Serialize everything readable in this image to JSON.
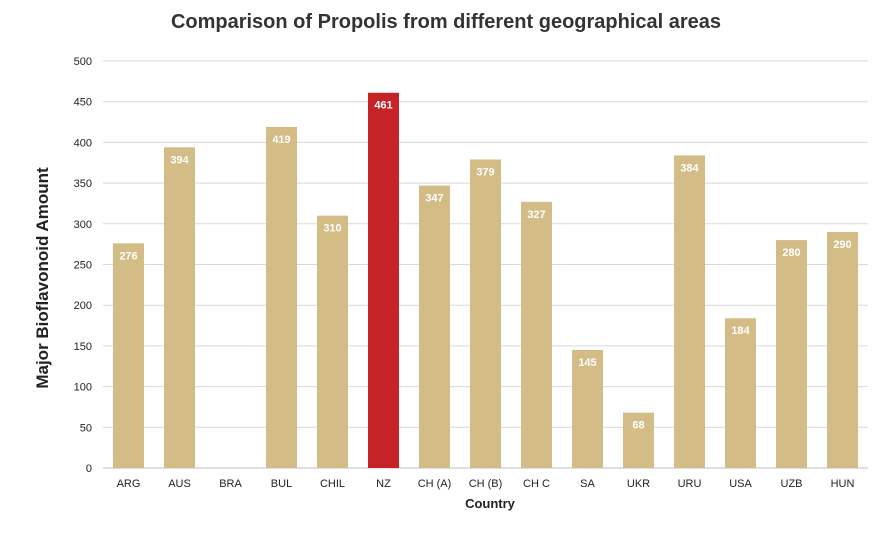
{
  "chart_data": {
    "type": "bar",
    "title": "Comparison of Propolis from different geographical areas",
    "xlabel": "Country",
    "ylabel": "Major Bioflavonoid Amount",
    "ylim": [
      0,
      500
    ],
    "yticks": [
      0,
      50,
      100,
      150,
      200,
      250,
      300,
      350,
      400,
      450,
      500
    ],
    "grid": true,
    "legend": "none",
    "categories": [
      "ARG",
      "AUS",
      "BRA",
      "BUL",
      "CHIL",
      "NZ",
      "CH (A)",
      "CH (B)",
      "CH C",
      "SA",
      "UKR",
      "URU",
      "USA",
      "UZB",
      "HUN"
    ],
    "values": [
      276,
      394,
      null,
      419,
      310,
      461,
      347,
      379,
      327,
      145,
      68,
      384,
      184,
      280,
      290
    ],
    "colors": {
      "default_bar": "#d4bc86",
      "highlight_bar": "#c62326",
      "highlight_category": "NZ",
      "grid": "#d9d9d9",
      "axis": "#bfbfbf"
    }
  }
}
